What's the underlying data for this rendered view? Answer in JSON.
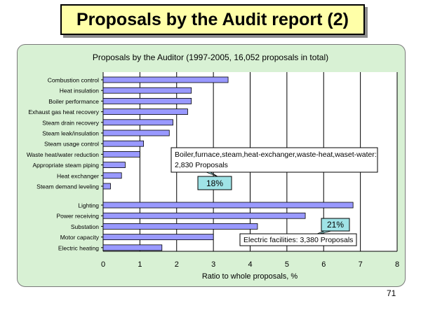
{
  "slide": {
    "title": "Proposals by the Audit report  (2)",
    "page_number": "71"
  },
  "chart_data": {
    "type": "bar",
    "orientation": "horizontal",
    "title": "Proposals by the Auditor (1997-2005, 16,052 proposals in total)",
    "xlabel": "Ratio to whole proposals, %",
    "ylabel": "",
    "xlim": [
      0,
      8
    ],
    "xticks": [
      "0",
      "1",
      "2",
      "3",
      "4",
      "5",
      "6",
      "7",
      "8"
    ],
    "grid": true,
    "bar_color": "#9999ff",
    "groups": [
      {
        "name": "Boiler,furnace,steam,heat-exchanger,waste-heat,waset-water:",
        "total_label": "2,830 Proposals",
        "percent_label": "18%",
        "categories": [
          "Combustion control",
          "Heat insulation",
          "Boiler performance",
          "Exhaust gas heat recovery",
          "Steam drain recovery",
          "Steam leak/insulation",
          "Steam usage control",
          "Waste heat/water reduction",
          "Appropriate steam piping",
          "Heat exchanger",
          "Steam demand leveling"
        ],
        "values": [
          3.4,
          2.4,
          2.4,
          2.3,
          1.9,
          1.8,
          1.1,
          1.0,
          0.6,
          0.5,
          0.2
        ]
      },
      {
        "name": "Electric facilities",
        "total_label": "Electric facilities: 3,380 Proposals",
        "percent_label": "21%",
        "categories": [
          "Lighting",
          "Power receiving",
          "Substation",
          "Motor capacity",
          "Electric heating"
        ],
        "values": [
          6.8,
          5.5,
          4.2,
          3.0,
          1.6
        ]
      }
    ]
  }
}
